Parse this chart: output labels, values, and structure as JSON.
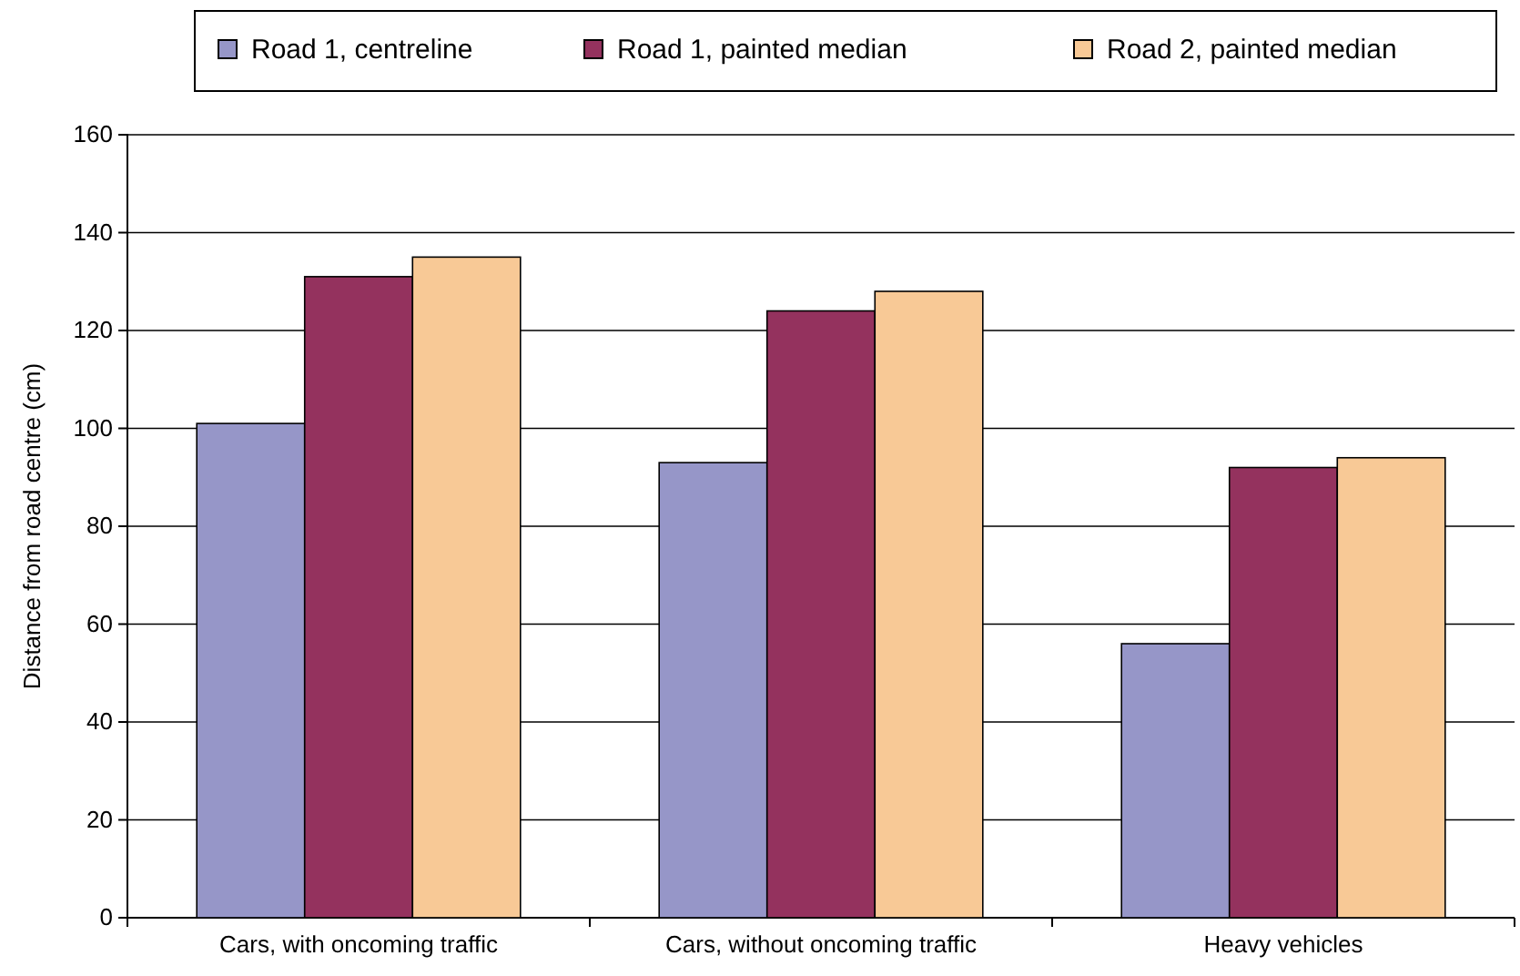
{
  "chart_data": {
    "type": "bar",
    "ylabel": "Distance from road centre (cm)",
    "categories": [
      "Cars, with oncoming traffic",
      "Cars, without oncoming traffic",
      "Heavy vehicles"
    ],
    "series": [
      {
        "name": "Road 1, centreline",
        "color": "#9696c8",
        "values": [
          101,
          93,
          56
        ]
      },
      {
        "name": "Road 1, painted median",
        "color": "#94325e",
        "values": [
          131,
          124,
          92
        ]
      },
      {
        "name": "Road 2, painted median",
        "color": "#f8c996",
        "values": [
          135,
          128,
          94
        ]
      }
    ],
    "ylim": [
      0,
      160
    ],
    "yticks": [
      0,
      20,
      40,
      60,
      80,
      100,
      120,
      140,
      160
    ],
    "grid": "y",
    "legend": "top"
  }
}
